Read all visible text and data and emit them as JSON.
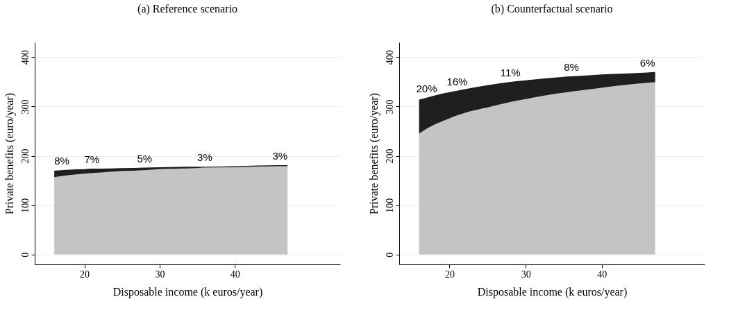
{
  "chart_data": [
    {
      "type": "area",
      "title": "(a) Reference scenario",
      "xlabel": "Disposable income (k euros/year)",
      "ylabel": "Private benefits (euro/year)",
      "stacked": true,
      "grid": "y",
      "legend": false,
      "x": [
        16,
        17,
        18,
        20,
        21,
        22,
        25,
        28,
        30,
        35,
        36,
        40,
        46,
        47
      ],
      "series": [
        {
          "color": "#c4c4c4",
          "values": [
            157,
            159,
            161,
            164,
            165,
            166,
            169,
            171,
            173,
            175,
            176,
            177,
            179,
            179
          ]
        },
        {
          "color": "#1f1f1f",
          "values": [
            13,
            12,
            11,
            9,
            9,
            8,
            6,
            5,
            4,
            3,
            2,
            2,
            2,
            2
          ]
        }
      ],
      "xlim": [
        13.4,
        54
      ],
      "xticks": [
        20,
        30,
        40
      ],
      "ylim": [
        -20,
        430
      ],
      "yticks": [
        0,
        100,
        200,
        300,
        400
      ],
      "annotations": [
        {
          "text": "8%",
          "x": 17,
          "y": 171
        },
        {
          "text": "7%",
          "x": 21,
          "y": 174
        },
        {
          "text": "5%",
          "x": 28,
          "y": 176
        },
        {
          "text": "3%",
          "x": 36,
          "y": 178
        },
        {
          "text": "3%",
          "x": 46,
          "y": 181
        }
      ]
    },
    {
      "type": "area",
      "title": "(b) Counterfactual scenario",
      "xlabel": "Disposable income (k euros/year)",
      "ylabel": "Private benefits (euro/year)",
      "stacked": true,
      "grid": "y",
      "legend": false,
      "x": [
        16,
        17,
        18,
        20,
        21,
        22,
        25,
        28,
        30,
        35,
        36,
        40,
        46,
        47
      ],
      "series": [
        {
          "color": "#c4c4c4",
          "values": [
            245,
            255,
            263,
            276,
            282,
            287,
            298,
            309,
            315,
            328,
            330,
            338,
            348,
            349
          ]
        },
        {
          "color": "#1f1f1f",
          "values": [
            69,
            63,
            59,
            53,
            50,
            48,
            45,
            41,
            38,
            32,
            31,
            27,
            21,
            21
          ]
        }
      ],
      "xlim": [
        13.4,
        53.5
      ],
      "xticks": [
        20,
        30,
        40
      ],
      "ylim": [
        -20,
        430
      ],
      "yticks": [
        0,
        100,
        200,
        300,
        400
      ],
      "annotations": [
        {
          "text": "20%",
          "x": 17,
          "y": 318
        },
        {
          "text": "16%",
          "x": 21,
          "y": 332
        },
        {
          "text": "11%",
          "x": 28,
          "y": 350
        },
        {
          "text": "8%",
          "x": 36,
          "y": 361
        },
        {
          "text": "6%",
          "x": 46,
          "y": 369
        }
      ]
    }
  ]
}
